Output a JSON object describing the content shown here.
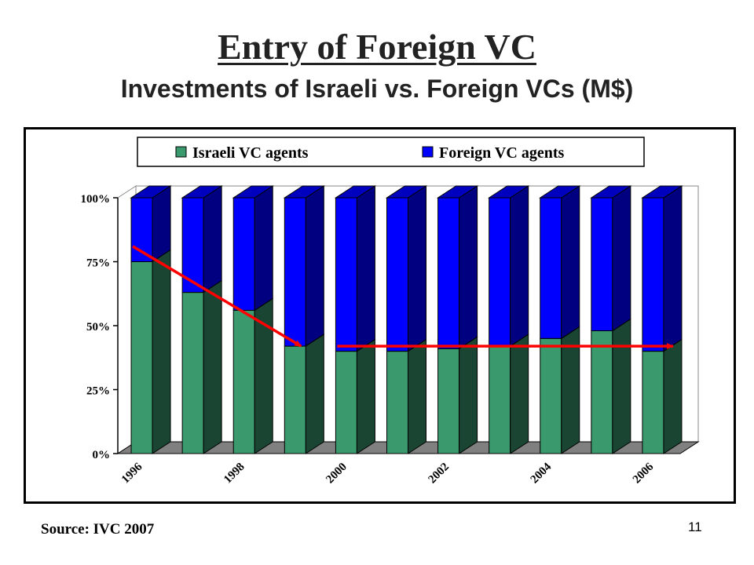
{
  "slide": {
    "title": "Entry of Foreign VC",
    "subtitle": "Investments of Israeli vs. Foreign VCs (M$)",
    "source": "Source: IVC 2007",
    "page_number": "11"
  },
  "chart_data": {
    "type": "bar",
    "stacked": true,
    "percent": true,
    "three_d": true,
    "categories": [
      "1996",
      "1997",
      "1998",
      "1999",
      "2000",
      "2001",
      "2002",
      "2003",
      "2004",
      "2005",
      "2006"
    ],
    "visible_tick_labels": [
      "1996",
      "1998",
      "2000",
      "2002",
      "2004",
      "2006"
    ],
    "y_ticks": [
      "0%",
      "25%",
      "50%",
      "75%",
      "100%"
    ],
    "ylim": [
      0,
      100
    ],
    "legend_position": "top",
    "series": [
      {
        "name": "Israeli VC agents",
        "color": "#3a9a6e",
        "values": [
          75,
          63,
          56,
          42,
          40,
          40,
          41,
          42,
          45,
          48,
          40
        ]
      },
      {
        "name": "Foreign VC agents",
        "color": "#0000ff",
        "values": [
          25,
          37,
          44,
          58,
          60,
          60,
          59,
          58,
          55,
          52,
          60
        ]
      }
    ],
    "annotations": [
      {
        "type": "arrow",
        "color": "#ff0000",
        "from_category": "1996",
        "from_value": 81,
        "to_category": "1999",
        "to_value": 42
      },
      {
        "type": "arrow",
        "color": "#ff0000",
        "from_category": "2000",
        "from_value": 42,
        "to_category": "2006",
        "to_value": 42
      }
    ]
  }
}
